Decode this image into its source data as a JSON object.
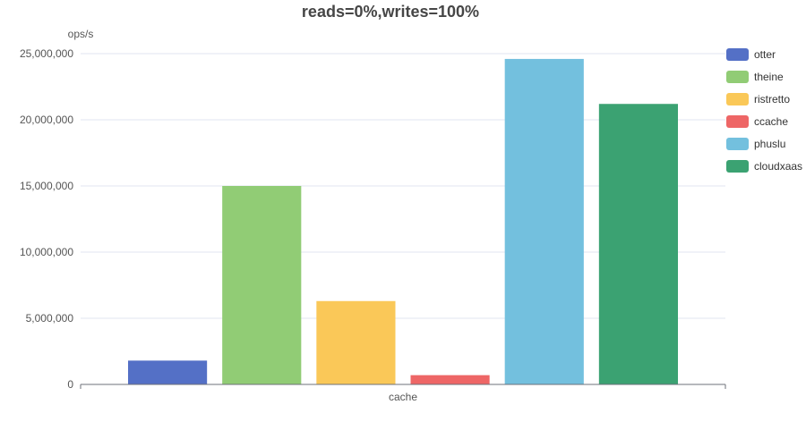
{
  "chart_data": {
    "type": "bar",
    "title": "reads=0%,writes=100%",
    "ylabel": "ops/s",
    "xlabel": "cache",
    "ylim": [
      0,
      25000000
    ],
    "yticks": [
      0,
      5000000,
      10000000,
      15000000,
      20000000,
      25000000
    ],
    "ytick_labels": [
      "0",
      "5,000,000",
      "10,000,000",
      "15,000,000",
      "20,000,000",
      "25,000,000"
    ],
    "grid": true,
    "legend_position": "right",
    "categories": [
      "cache"
    ],
    "series": [
      {
        "name": "otter",
        "values": [
          1800000
        ],
        "color": "#5470c6"
      },
      {
        "name": "theine",
        "values": [
          15000000
        ],
        "color": "#91cc75"
      },
      {
        "name": "ristretto",
        "values": [
          6300000
        ],
        "color": "#fac858"
      },
      {
        "name": "ccache",
        "values": [
          700000
        ],
        "color": "#ee6666"
      },
      {
        "name": "phuslu",
        "values": [
          24600000
        ],
        "color": "#73c0de"
      },
      {
        "name": "cloudxaas",
        "values": [
          21200000
        ],
        "color": "#3ba272"
      }
    ]
  }
}
